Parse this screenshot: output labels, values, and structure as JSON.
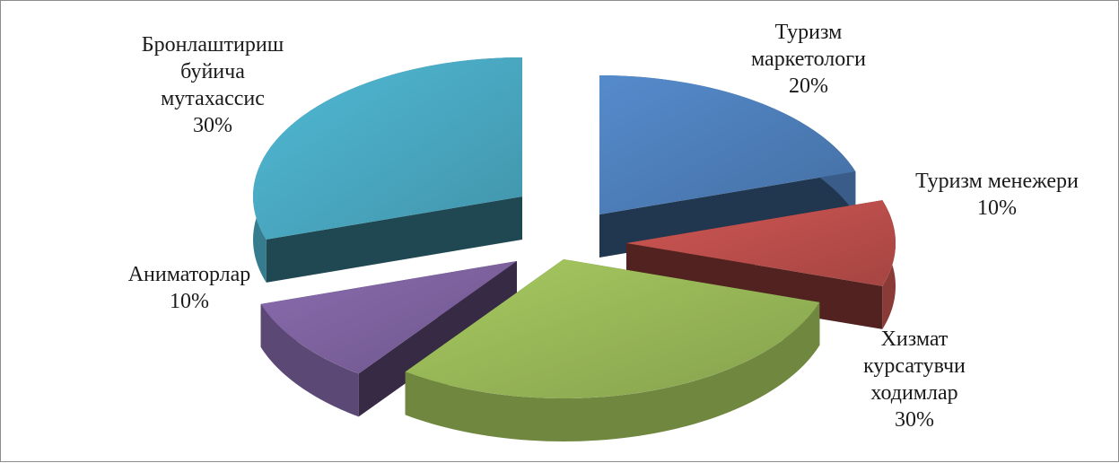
{
  "chart_data": {
    "type": "pie",
    "variant": "3d-exploded",
    "title": "",
    "legend": "none",
    "data_labels": "category and percentage",
    "slices": [
      {
        "label_lines": [
          "Туризм",
          "маркетологи"
        ],
        "value": 20,
        "value_label": "20%",
        "color": "#4f81bd"
      },
      {
        "label_lines": [
          "Туризм менежери"
        ],
        "value": 10,
        "value_label": "10%",
        "color": "#c0504d"
      },
      {
        "label_lines": [
          "Хизмат",
          "курсатувчи",
          "ходимлар"
        ],
        "value": 30,
        "value_label": "30%",
        "color": "#9bbb59"
      },
      {
        "label_lines": [
          "Аниматорлар"
        ],
        "value": 10,
        "value_label": "10%",
        "color": "#8064a2"
      },
      {
        "label_lines": [
          "Бронлаштириш",
          "буйича",
          "мутахассис"
        ],
        "value": 30,
        "value_label": "30%",
        "color": "#4bacc6"
      }
    ]
  }
}
